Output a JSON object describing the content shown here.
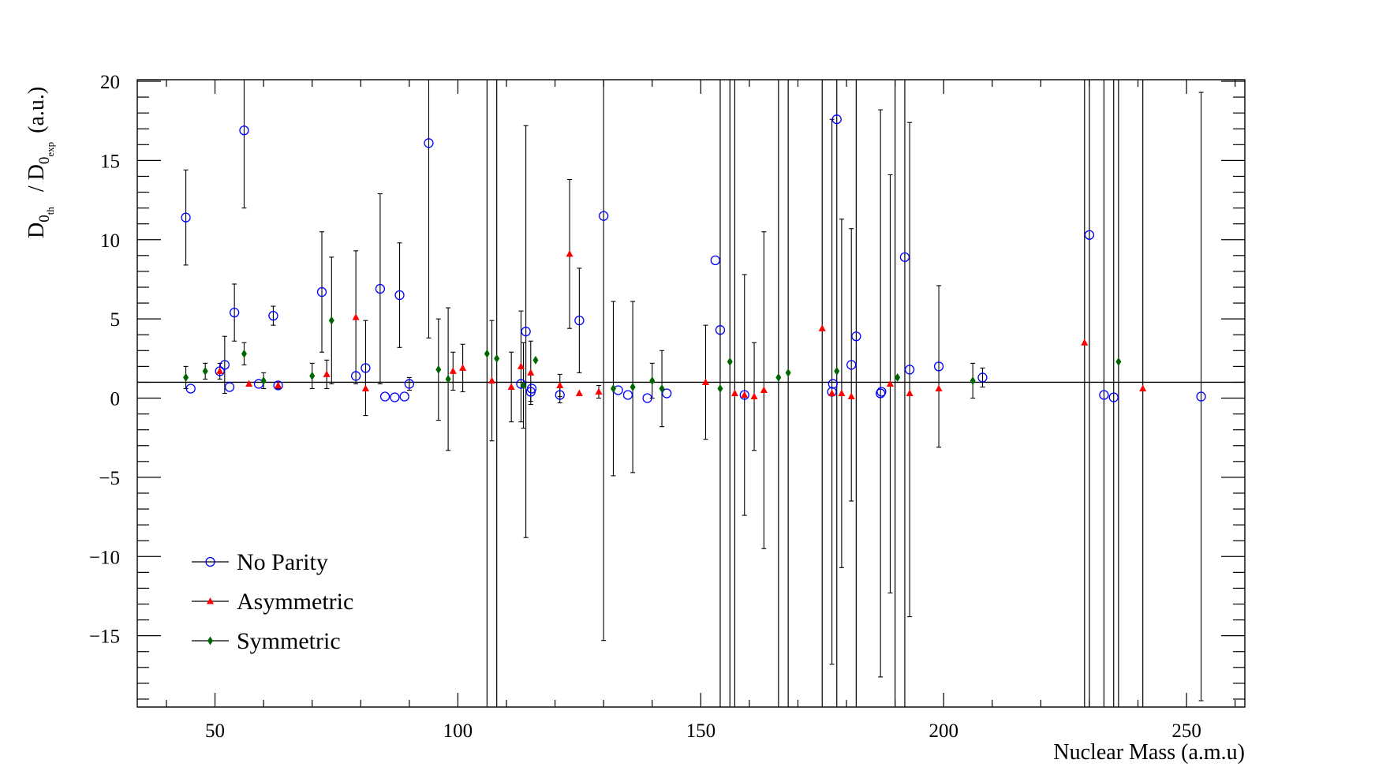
{
  "chart_data": {
    "type": "scatter",
    "ylabel": {
      "main": "D",
      "sub1": "0",
      "subsub1": "th",
      "sep": " / D",
      "sub2": "0",
      "subsub2": "exp",
      "unit": " (a.u.)"
    },
    "xlabel": "Nuclear Mass (a.m.u)",
    "xlim": [
      34,
      262
    ],
    "ylim": [
      -19.5,
      20.1
    ],
    "xticks": [
      50,
      100,
      150,
      200,
      250
    ],
    "xtick_labels": [
      "50",
      "100",
      "150",
      "200",
      "250"
    ],
    "yticks": [
      -15,
      -10,
      -5,
      0,
      5,
      10,
      15,
      20
    ],
    "ytick_labels": [
      "−15",
      "−10",
      "−5",
      "0",
      "5",
      "10",
      "15",
      "20"
    ],
    "reference_line": 1,
    "grid": false,
    "legend_placement": "bottom-left",
    "series": [
      {
        "name": "No Parity",
        "color": "#0000ff",
        "marker": "open-circle",
        "points": [
          {
            "x": 44,
            "y": 11.4,
            "err": 3.0
          },
          {
            "x": 45,
            "y": 0.6,
            "err": 0
          },
          {
            "x": 51,
            "y": 1.7,
            "err": 0.5
          },
          {
            "x": 52,
            "y": 2.1,
            "err": 1.8
          },
          {
            "x": 53,
            "y": 0.7,
            "err": 0
          },
          {
            "x": 54,
            "y": 5.4,
            "err": 1.8
          },
          {
            "x": 56,
            "y": 16.9,
            "err": 4.9
          },
          {
            "x": 59,
            "y": 0.9,
            "err": 0
          },
          {
            "x": 62,
            "y": 5.2,
            "err": 0.6
          },
          {
            "x": 63,
            "y": 0.8,
            "err": 0.2
          },
          {
            "x": 72,
            "y": 6.7,
            "err": 3.8
          },
          {
            "x": 79,
            "y": 1.4,
            "err": 0
          },
          {
            "x": 81,
            "y": 1.9,
            "err": 3.0
          },
          {
            "x": 84,
            "y": 6.9,
            "err": 6.0
          },
          {
            "x": 85,
            "y": 0.1,
            "err": 0
          },
          {
            "x": 87,
            "y": 0.05,
            "err": 0
          },
          {
            "x": 88,
            "y": 6.5,
            "err": 3.3
          },
          {
            "x": 89,
            "y": 0.1,
            "err": 0
          },
          {
            "x": 90,
            "y": 0.9,
            "err": 0.4
          },
          {
            "x": 94,
            "y": 16.1,
            "err": 12.3
          },
          {
            "x": 113,
            "y": 0.9,
            "err": 0
          },
          {
            "x": 114,
            "y": 4.2,
            "err": 13.0
          },
          {
            "x": 115,
            "y": 0.4,
            "err": 0.6
          },
          {
            "x": 115.2,
            "y": 0.6,
            "err": 0
          },
          {
            "x": 121,
            "y": 0.2,
            "err": 0.5
          },
          {
            "x": 125,
            "y": 4.9,
            "err": 3.3
          },
          {
            "x": 130,
            "y": 11.5,
            "err": 26.8
          },
          {
            "x": 133,
            "y": 0.5,
            "err": 0
          },
          {
            "x": 135,
            "y": 0.2,
            "err": 0
          },
          {
            "x": 139,
            "y": 0.0,
            "err": 0
          },
          {
            "x": 143,
            "y": 0.3,
            "err": 0
          },
          {
            "x": 153,
            "y": 8.7,
            "err": 0
          },
          {
            "x": 154,
            "y": 4.3,
            "err": 0
          },
          {
            "x": 159,
            "y": 0.2,
            "err": 7.6
          },
          {
            "x": 177,
            "y": 0.4,
            "err": 17.2
          },
          {
            "x": 177.2,
            "y": 0.9,
            "err": 0
          },
          {
            "x": 178,
            "y": 17.6,
            "err": 0
          },
          {
            "x": 181,
            "y": 2.1,
            "err": 8.6
          },
          {
            "x": 182,
            "y": 3.9,
            "err": 0
          },
          {
            "x": 187,
            "y": 0.3,
            "err": 17.9
          },
          {
            "x": 187.2,
            "y": 0.4,
            "err": 0
          },
          {
            "x": 192,
            "y": 8.9,
            "err": 0
          },
          {
            "x": 193,
            "y": 1.8,
            "err": 15.6
          },
          {
            "x": 199,
            "y": 2.0,
            "err": 5.1
          },
          {
            "x": 208,
            "y": 1.3,
            "err": 0.6
          },
          {
            "x": 230,
            "y": 10.3,
            "err": 0
          },
          {
            "x": 233,
            "y": 0.2,
            "err": 0
          },
          {
            "x": 235,
            "y": 0.05,
            "err": 0
          },
          {
            "x": 253,
            "y": 0.1,
            "err": 19.2
          }
        ]
      },
      {
        "name": "Asymmetric",
        "color": "#ff0000",
        "marker": "triangle",
        "points": [
          {
            "x": 51,
            "y": 1.7,
            "err": 0
          },
          {
            "x": 57,
            "y": 0.9,
            "err": 0
          },
          {
            "x": 63,
            "y": 0.8,
            "err": 0
          },
          {
            "x": 73,
            "y": 1.5,
            "err": 0.9
          },
          {
            "x": 79,
            "y": 5.1,
            "err": 4.2
          },
          {
            "x": 81,
            "y": 0.6,
            "err": 0
          },
          {
            "x": 99,
            "y": 1.7,
            "err": 1.2
          },
          {
            "x": 101,
            "y": 1.9,
            "err": 1.5
          },
          {
            "x": 107,
            "y": 1.1,
            "err": 3.8
          },
          {
            "x": 111,
            "y": 0.7,
            "err": 2.2
          },
          {
            "x": 113,
            "y": 2.0,
            "err": 3.5
          },
          {
            "x": 115,
            "y": 1.6,
            "err": 2.0
          },
          {
            "x": 121,
            "y": 0.8,
            "err": 0.7
          },
          {
            "x": 123,
            "y": 9.1,
            "err": 4.7
          },
          {
            "x": 125,
            "y": 0.3,
            "err": 0
          },
          {
            "x": 129,
            "y": 0.4,
            "err": 0.4
          },
          {
            "x": 151,
            "y": 1.0,
            "err": 3.6
          },
          {
            "x": 157,
            "y": 0.3,
            "err": 0
          },
          {
            "x": 159,
            "y": 0.2,
            "err": 0
          },
          {
            "x": 161,
            "y": 0.1,
            "err": 3.4
          },
          {
            "x": 163,
            "y": 0.5,
            "err": 10.0
          },
          {
            "x": 175,
            "y": 4.4,
            "err": 0
          },
          {
            "x": 177,
            "y": 0.3,
            "err": 0
          },
          {
            "x": 179,
            "y": 0.3,
            "err": 11.0
          },
          {
            "x": 181,
            "y": 0.1,
            "err": 0
          },
          {
            "x": 189,
            "y": 0.9,
            "err": 13.2
          },
          {
            "x": 193,
            "y": 0.3,
            "err": 0
          },
          {
            "x": 199,
            "y": 0.6,
            "err": 0
          },
          {
            "x": 229,
            "y": 3.5,
            "err": 0
          },
          {
            "x": 241,
            "y": 0.6,
            "err": 0
          }
        ]
      },
      {
        "name": "Symmetric",
        "color": "#006600",
        "marker": "diamond",
        "points": [
          {
            "x": 44,
            "y": 1.3,
            "err": 0.7
          },
          {
            "x": 48,
            "y": 1.7,
            "err": 0.5
          },
          {
            "x": 56,
            "y": 2.8,
            "err": 0.7
          },
          {
            "x": 60,
            "y": 1.1,
            "err": 0.5
          },
          {
            "x": 70,
            "y": 1.4,
            "err": 0.8
          },
          {
            "x": 74,
            "y": 4.9,
            "err": 4.0
          },
          {
            "x": 96,
            "y": 1.8,
            "err": 3.2
          },
          {
            "x": 98,
            "y": 1.2,
            "err": 4.5
          },
          {
            "x": 106,
            "y": 2.8,
            "err": 0
          },
          {
            "x": 108,
            "y": 2.5,
            "err": 0
          },
          {
            "x": 113.5,
            "y": 0.8,
            "err": 2.7
          },
          {
            "x": 116,
            "y": 2.4,
            "err": 0
          },
          {
            "x": 132,
            "y": 0.6,
            "err": 5.5
          },
          {
            "x": 136,
            "y": 0.7,
            "err": 5.4
          },
          {
            "x": 140,
            "y": 1.1,
            "err": 1.1
          },
          {
            "x": 142,
            "y": 0.6,
            "err": 2.4
          },
          {
            "x": 154,
            "y": 0.6,
            "err": 0
          },
          {
            "x": 156,
            "y": 2.3,
            "err": 0
          },
          {
            "x": 166,
            "y": 1.3,
            "err": 0
          },
          {
            "x": 168,
            "y": 1.6,
            "err": 0
          },
          {
            "x": 178,
            "y": 1.7,
            "err": 0
          },
          {
            "x": 190.5,
            "y": 1.3,
            "err": 0
          },
          {
            "x": 206,
            "y": 1.1,
            "err": 1.1
          },
          {
            "x": 236,
            "y": 2.3,
            "err": 0
          }
        ]
      }
    ],
    "full_range_error_bars_x": [
      106,
      108,
      154,
      156,
      157,
      166,
      168,
      175,
      178,
      182,
      190,
      192,
      229,
      230,
      233,
      235,
      236,
      241
    ]
  }
}
